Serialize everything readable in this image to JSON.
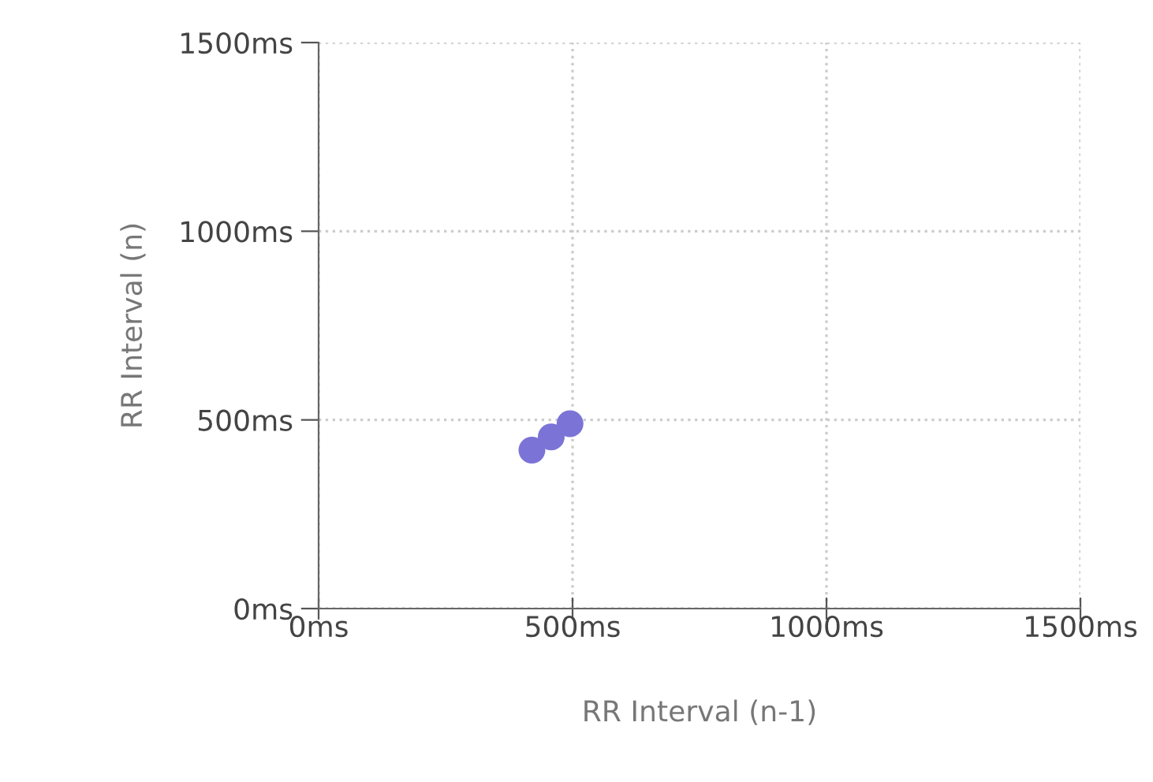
{
  "chart_data": {
    "type": "scatter",
    "xlabel": "RR Interval (n-1)",
    "ylabel": "RR Interval (n)",
    "x": [
      420,
      458,
      495
    ],
    "series": [
      {
        "color": "#7b73d6",
        "values": [
          420,
          455,
          490
        ]
      }
    ],
    "xlim": [
      0,
      1500
    ],
    "ylim": [
      0,
      1500
    ],
    "xticks": [
      {
        "value": 0,
        "label": "0ms"
      },
      {
        "value": 500,
        "label": "500ms"
      },
      {
        "value": 1000,
        "label": "1000ms"
      },
      {
        "value": 1500,
        "label": "1500ms"
      }
    ],
    "yticks": [
      {
        "value": 0,
        "label": "0ms"
      },
      {
        "value": 500,
        "label": "500ms"
      },
      {
        "value": 1000,
        "label": "1000ms"
      },
      {
        "value": 1500,
        "label": "1500ms"
      }
    ],
    "grid": true,
    "marker": "circle"
  }
}
